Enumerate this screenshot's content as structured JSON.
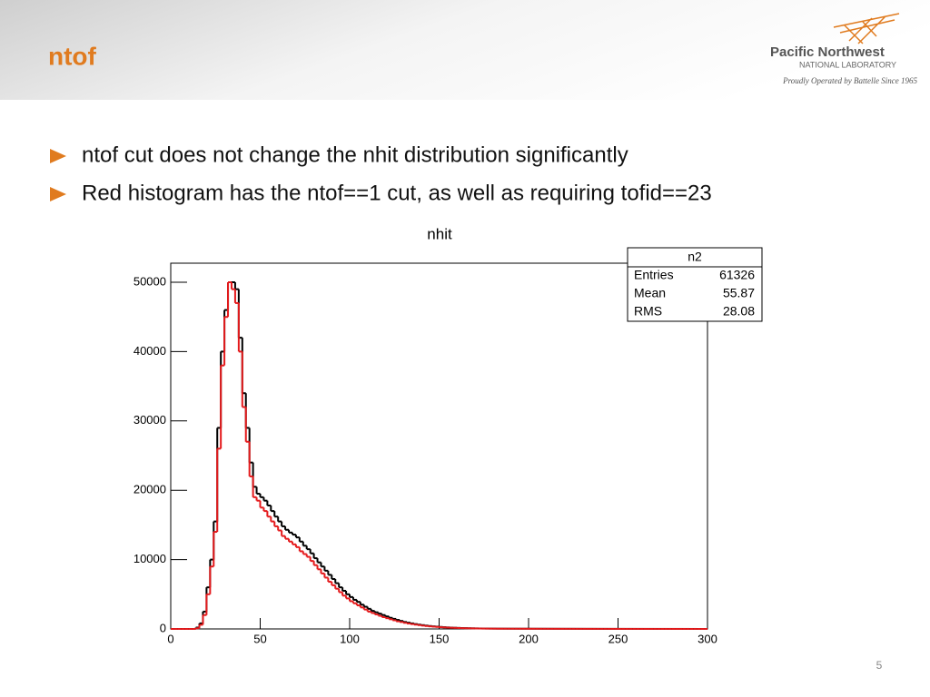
{
  "header": {
    "title": "ntof",
    "logo": {
      "name": "Pacific Northwest",
      "sub": "NATIONAL LABORATORY",
      "tagline": "Proudly Operated by Battelle Since 1965"
    }
  },
  "bullets": [
    "ntof cut does not change the nhit distribution significantly",
    "Red histogram has the ntof==1 cut, as well as requiring tofid==23"
  ],
  "chart_data": {
    "type": "histogram",
    "title": "nhit",
    "bins": [
      0,
      2,
      4,
      6,
      8,
      10,
      12,
      14,
      16,
      18,
      20,
      22,
      24,
      26,
      28,
      30,
      32,
      34,
      36,
      38,
      40,
      42,
      44,
      46,
      48,
      50,
      52,
      54,
      56,
      58,
      60,
      62,
      64,
      66,
      68,
      70,
      72,
      74,
      76,
      78,
      80,
      82,
      84,
      86,
      88,
      90,
      92,
      94,
      96,
      98,
      100,
      102,
      104,
      106,
      108,
      110,
      112,
      114,
      116,
      118,
      120,
      122,
      124,
      126,
      128,
      130,
      132,
      134,
      136,
      138,
      140,
      142,
      144,
      146,
      148,
      150,
      152,
      154,
      156,
      158,
      160,
      162,
      164,
      166,
      168,
      170,
      172,
      174,
      176,
      178,
      180,
      182,
      184,
      186,
      188,
      190,
      192,
      194,
      196,
      198,
      200,
      202,
      204,
      206,
      208,
      210,
      212,
      214,
      216,
      218,
      220,
      222,
      224,
      226,
      228,
      230,
      232,
      234,
      236,
      238,
      240,
      242,
      244,
      246,
      248,
      250,
      252,
      254,
      256,
      258,
      260,
      262,
      264,
      266,
      268,
      270,
      272,
      274,
      276,
      278,
      280,
      282,
      284,
      286,
      288,
      290,
      292,
      294,
      296,
      298,
      300
    ],
    "series": [
      {
        "color": "#000000",
        "values": [
          0,
          0,
          0,
          0,
          0,
          0,
          0,
          200,
          800,
          2500,
          6000,
          10000,
          15500,
          29000,
          40000,
          46000,
          50000,
          50000,
          49000,
          42000,
          34000,
          29000,
          24000,
          20500,
          19500,
          19000,
          18500,
          17800,
          17000,
          16200,
          15500,
          14800,
          14300,
          13900,
          13600,
          13200,
          12600,
          12000,
          11500,
          10900,
          10200,
          9600,
          9000,
          8400,
          7800,
          7200,
          6600,
          6000,
          5500,
          5000,
          4600,
          4200,
          3900,
          3500,
          3200,
          2900,
          2600,
          2400,
          2200,
          2000,
          1800,
          1600,
          1450,
          1300,
          1150,
          1000,
          900,
          800,
          700,
          620,
          550,
          480,
          420,
          370,
          330,
          290,
          250,
          220,
          190,
          170,
          150,
          130,
          115,
          100,
          90,
          80,
          70,
          60,
          55,
          50,
          45,
          40,
          40,
          38,
          36,
          35,
          34,
          33,
          32,
          31,
          30,
          29,
          28,
          27,
          26,
          25,
          24,
          23,
          22,
          21,
          20,
          20,
          19,
          18,
          17,
          16,
          15,
          15,
          14,
          13,
          12,
          12,
          11,
          10,
          10,
          9,
          9,
          8,
          8,
          7,
          7,
          7,
          6,
          6,
          6,
          5,
          5,
          5,
          5,
          4,
          4,
          4,
          4,
          3,
          3,
          3,
          3,
          2,
          2,
          2
        ]
      },
      {
        "color": "#e41a1c",
        "values": [
          0,
          0,
          0,
          0,
          0,
          0,
          0,
          100,
          600,
          2000,
          5000,
          9000,
          14000,
          26000,
          38000,
          45000,
          50000,
          49000,
          47000,
          40000,
          32000,
          27000,
          22000,
          19000,
          18500,
          17500,
          17000,
          16200,
          15500,
          14800,
          14200,
          13400,
          13000,
          12600,
          12200,
          11800,
          11200,
          10800,
          10400,
          9800,
          9200,
          8600,
          8000,
          7400,
          6800,
          6300,
          5800,
          5300,
          4800,
          4400,
          4000,
          3700,
          3400,
          3100,
          2800,
          2500,
          2300,
          2100,
          1900,
          1700,
          1550,
          1400,
          1250,
          1100,
          1000,
          880,
          780,
          700,
          620,
          550,
          480,
          420,
          370,
          330,
          290,
          250,
          220,
          190,
          170,
          150,
          130,
          115,
          100,
          90,
          80,
          70,
          60,
          55,
          50,
          45,
          40,
          36,
          35,
          34,
          32,
          31,
          30,
          29,
          28,
          27,
          26,
          25,
          24,
          23,
          22,
          21,
          20,
          19,
          19,
          18,
          17,
          17,
          16,
          15,
          14,
          14,
          13,
          13,
          12,
          11,
          11,
          10,
          10,
          9,
          9,
          8,
          8,
          7,
          7,
          7,
          6,
          6,
          6,
          5,
          5,
          5,
          4,
          4,
          4,
          4,
          3,
          3,
          3,
          3,
          3,
          2,
          2,
          2,
          2,
          2
        ]
      }
    ],
    "xlim": [
      0,
      300
    ],
    "ylim": [
      0,
      52750
    ],
    "xticks": [
      0,
      50,
      100,
      150,
      200,
      250,
      300
    ],
    "yticks": [
      0,
      10000,
      20000,
      30000,
      40000,
      50000
    ],
    "stats": {
      "title": "n2",
      "rows": [
        [
          "Entries",
          61326
        ],
        [
          "Mean",
          55.87
        ],
        [
          "RMS",
          28.08
        ]
      ]
    }
  },
  "page_number": "5"
}
